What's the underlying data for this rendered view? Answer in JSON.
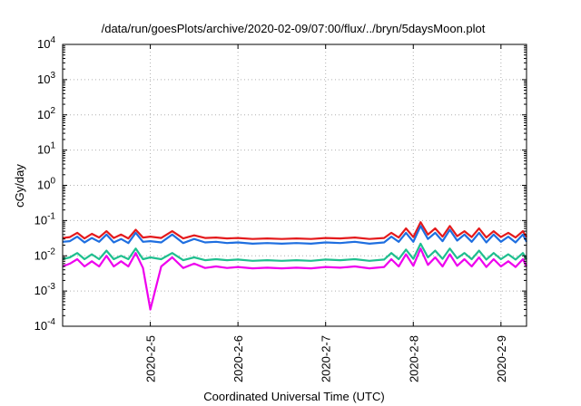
{
  "chart_data": {
    "type": "line",
    "title": "/data/run/goesPlots/archive/2020-02-09/07:00/flux/../bryn/5daysMoon.plot",
    "xlabel": "Coordinated Universal Time (UTC)",
    "ylabel": "cGy/day",
    "yscale": "log",
    "ylim": [
      0.0001,
      10000
    ],
    "xlim": [
      "2020-02-04 00:00",
      "2020-02-09 07:00"
    ],
    "grid": true,
    "y_ticks": [
      {
        "base": "10",
        "exp": "-4",
        "value": 0.0001
      },
      {
        "base": "10",
        "exp": "-3",
        "value": 0.001
      },
      {
        "base": "10",
        "exp": "-2",
        "value": 0.01
      },
      {
        "base": "10",
        "exp": "-1",
        "value": 0.1
      },
      {
        "base": "10",
        "exp": "0",
        "value": 1
      },
      {
        "base": "10",
        "exp": "1",
        "value": 10
      },
      {
        "base": "10",
        "exp": "2",
        "value": 100
      },
      {
        "base": "10",
        "exp": "3",
        "value": 1000
      },
      {
        "base": "10",
        "exp": "4",
        "value": 10000
      }
    ],
    "x_ticks": [
      {
        "label": "2020-2-5",
        "date": "2020-02-05 00:00"
      },
      {
        "label": "2020-2-6",
        "date": "2020-02-06 00:00"
      },
      {
        "label": "2020-2-7",
        "date": "2020-02-07 00:00"
      },
      {
        "label": "2020-2-8",
        "date": "2020-02-08 00:00"
      },
      {
        "label": "2020-2-9",
        "date": "2020-02-09 00:00"
      }
    ],
    "series": [
      {
        "color": "#e41a1c",
        "x": [
          "2020-02-04 00:00",
          "2020-02-04 02:00",
          "2020-02-04 04:00",
          "2020-02-04 06:00",
          "2020-02-04 08:00",
          "2020-02-04 10:00",
          "2020-02-04 12:00",
          "2020-02-04 14:00",
          "2020-02-04 16:00",
          "2020-02-04 18:00",
          "2020-02-04 20:00",
          "2020-02-04 22:00",
          "2020-02-05 00:00",
          "2020-02-05 03:00",
          "2020-02-05 06:00",
          "2020-02-05 09:00",
          "2020-02-05 12:00",
          "2020-02-05 15:00",
          "2020-02-05 18:00",
          "2020-02-05 21:00",
          "2020-02-06 00:00",
          "2020-02-06 04:00",
          "2020-02-06 08:00",
          "2020-02-06 12:00",
          "2020-02-06 16:00",
          "2020-02-06 20:00",
          "2020-02-07 00:00",
          "2020-02-07 04:00",
          "2020-02-07 08:00",
          "2020-02-07 12:00",
          "2020-02-07 16:00",
          "2020-02-07 18:00",
          "2020-02-07 20:00",
          "2020-02-07 22:00",
          "2020-02-08 00:00",
          "2020-02-08 02:00",
          "2020-02-08 04:00",
          "2020-02-08 06:00",
          "2020-02-08 08:00",
          "2020-02-08 10:00",
          "2020-02-08 12:00",
          "2020-02-08 14:00",
          "2020-02-08 16:00",
          "2020-02-08 18:00",
          "2020-02-08 20:00",
          "2020-02-08 22:00",
          "2020-02-09 00:00",
          "2020-02-09 02:00",
          "2020-02-09 04:00",
          "2020-02-09 06:00",
          "2020-02-09 07:00"
        ],
        "y": [
          0.032,
          0.034,
          0.045,
          0.031,
          0.042,
          0.033,
          0.05,
          0.032,
          0.04,
          0.031,
          0.055,
          0.033,
          0.035,
          0.032,
          0.05,
          0.031,
          0.038,
          0.032,
          0.033,
          0.031,
          0.032,
          0.03,
          0.031,
          0.03,
          0.031,
          0.03,
          0.032,
          0.031,
          0.033,
          0.03,
          0.032,
          0.045,
          0.033,
          0.06,
          0.034,
          0.09,
          0.04,
          0.06,
          0.035,
          0.07,
          0.036,
          0.05,
          0.034,
          0.06,
          0.033,
          0.05,
          0.034,
          0.045,
          0.033,
          0.05,
          0.034
        ]
      },
      {
        "color": "#1f6fe0",
        "x": [
          "2020-02-04 00:00",
          "2020-02-04 02:00",
          "2020-02-04 04:00",
          "2020-02-04 06:00",
          "2020-02-04 08:00",
          "2020-02-04 10:00",
          "2020-02-04 12:00",
          "2020-02-04 14:00",
          "2020-02-04 16:00",
          "2020-02-04 18:00",
          "2020-02-04 20:00",
          "2020-02-04 22:00",
          "2020-02-05 00:00",
          "2020-02-05 03:00",
          "2020-02-05 06:00",
          "2020-02-05 09:00",
          "2020-02-05 12:00",
          "2020-02-05 15:00",
          "2020-02-05 18:00",
          "2020-02-05 21:00",
          "2020-02-06 00:00",
          "2020-02-06 04:00",
          "2020-02-06 08:00",
          "2020-02-06 12:00",
          "2020-02-06 16:00",
          "2020-02-06 20:00",
          "2020-02-07 00:00",
          "2020-02-07 04:00",
          "2020-02-07 08:00",
          "2020-02-07 12:00",
          "2020-02-07 16:00",
          "2020-02-07 18:00",
          "2020-02-07 20:00",
          "2020-02-07 22:00",
          "2020-02-08 00:00",
          "2020-02-08 02:00",
          "2020-02-08 04:00",
          "2020-02-08 06:00",
          "2020-02-08 08:00",
          "2020-02-08 10:00",
          "2020-02-08 12:00",
          "2020-02-08 14:00",
          "2020-02-08 16:00",
          "2020-02-08 18:00",
          "2020-02-08 20:00",
          "2020-02-08 22:00",
          "2020-02-09 00:00",
          "2020-02-09 02:00",
          "2020-02-09 04:00",
          "2020-02-09 06:00",
          "2020-02-09 07:00"
        ],
        "y": [
          0.025,
          0.026,
          0.035,
          0.024,
          0.032,
          0.025,
          0.04,
          0.024,
          0.03,
          0.023,
          0.045,
          0.025,
          0.026,
          0.024,
          0.04,
          0.023,
          0.03,
          0.024,
          0.025,
          0.023,
          0.024,
          0.022,
          0.023,
          0.022,
          0.023,
          0.022,
          0.024,
          0.023,
          0.025,
          0.022,
          0.024,
          0.035,
          0.025,
          0.045,
          0.025,
          0.07,
          0.03,
          0.045,
          0.026,
          0.055,
          0.027,
          0.04,
          0.025,
          0.045,
          0.024,
          0.04,
          0.025,
          0.035,
          0.024,
          0.04,
          0.025
        ]
      },
      {
        "color": "#1fbf8f",
        "x": [
          "2020-02-04 00:00",
          "2020-02-04 02:00",
          "2020-02-04 04:00",
          "2020-02-04 06:00",
          "2020-02-04 08:00",
          "2020-02-04 10:00",
          "2020-02-04 12:00",
          "2020-02-04 14:00",
          "2020-02-04 16:00",
          "2020-02-04 18:00",
          "2020-02-04 20:00",
          "2020-02-04 22:00",
          "2020-02-05 00:00",
          "2020-02-05 03:00",
          "2020-02-05 06:00",
          "2020-02-05 09:00",
          "2020-02-05 12:00",
          "2020-02-05 15:00",
          "2020-02-05 18:00",
          "2020-02-05 21:00",
          "2020-02-06 00:00",
          "2020-02-06 04:00",
          "2020-02-06 08:00",
          "2020-02-06 12:00",
          "2020-02-06 16:00",
          "2020-02-06 20:00",
          "2020-02-07 00:00",
          "2020-02-07 04:00",
          "2020-02-07 08:00",
          "2020-02-07 12:00",
          "2020-02-07 16:00",
          "2020-02-07 18:00",
          "2020-02-07 20:00",
          "2020-02-07 22:00",
          "2020-02-08 00:00",
          "2020-02-08 02:00",
          "2020-02-08 04:00",
          "2020-02-08 06:00",
          "2020-02-08 08:00",
          "2020-02-08 10:00",
          "2020-02-08 12:00",
          "2020-02-08 14:00",
          "2020-02-08 16:00",
          "2020-02-08 18:00",
          "2020-02-08 20:00",
          "2020-02-08 22:00",
          "2020-02-09 00:00",
          "2020-02-09 02:00",
          "2020-02-09 04:00",
          "2020-02-09 06:00",
          "2020-02-09 07:00"
        ],
        "y": [
          0.008,
          0.009,
          0.012,
          0.008,
          0.011,
          0.008,
          0.014,
          0.008,
          0.01,
          0.008,
          0.016,
          0.008,
          0.009,
          0.008,
          0.012,
          0.0075,
          0.009,
          0.0075,
          0.008,
          0.0075,
          0.0078,
          0.0072,
          0.0075,
          0.0072,
          0.0075,
          0.0072,
          0.0078,
          0.0075,
          0.008,
          0.0072,
          0.0078,
          0.012,
          0.008,
          0.015,
          0.0082,
          0.022,
          0.009,
          0.014,
          0.0082,
          0.016,
          0.0085,
          0.012,
          0.008,
          0.014,
          0.0078,
          0.012,
          0.008,
          0.011,
          0.0078,
          0.012,
          0.008
        ]
      },
      {
        "color": "#ee00ee",
        "x": [
          "2020-02-04 00:00",
          "2020-02-04 02:00",
          "2020-02-04 04:00",
          "2020-02-04 06:00",
          "2020-02-04 08:00",
          "2020-02-04 10:00",
          "2020-02-04 12:00",
          "2020-02-04 14:00",
          "2020-02-04 16:00",
          "2020-02-04 18:00",
          "2020-02-04 20:00",
          "2020-02-04 22:00",
          "2020-02-05 00:00",
          "2020-02-05 03:00",
          "2020-02-05 06:00",
          "2020-02-05 09:00",
          "2020-02-05 12:00",
          "2020-02-05 15:00",
          "2020-02-05 18:00",
          "2020-02-05 21:00",
          "2020-02-06 00:00",
          "2020-02-06 04:00",
          "2020-02-06 08:00",
          "2020-02-06 12:00",
          "2020-02-06 16:00",
          "2020-02-06 20:00",
          "2020-02-07 00:00",
          "2020-02-07 04:00",
          "2020-02-07 08:00",
          "2020-02-07 12:00",
          "2020-02-07 16:00",
          "2020-02-07 18:00",
          "2020-02-07 20:00",
          "2020-02-07 22:00",
          "2020-02-08 00:00",
          "2020-02-08 02:00",
          "2020-02-08 04:00",
          "2020-02-08 06:00",
          "2020-02-08 08:00",
          "2020-02-08 10:00",
          "2020-02-08 12:00",
          "2020-02-08 14:00",
          "2020-02-08 16:00",
          "2020-02-08 18:00",
          "2020-02-08 20:00",
          "2020-02-08 22:00",
          "2020-02-09 00:00",
          "2020-02-09 02:00",
          "2020-02-09 04:00",
          "2020-02-09 06:00",
          "2020-02-09 07:00"
        ],
        "y": [
          0.005,
          0.006,
          0.008,
          0.005,
          0.007,
          0.005,
          0.01,
          0.005,
          0.007,
          0.005,
          0.012,
          0.0045,
          0.0003,
          0.005,
          0.009,
          0.0045,
          0.006,
          0.0045,
          0.005,
          0.0045,
          0.0048,
          0.0044,
          0.0046,
          0.0044,
          0.0046,
          0.0044,
          0.0048,
          0.0046,
          0.005,
          0.0044,
          0.0048,
          0.008,
          0.005,
          0.011,
          0.0052,
          0.016,
          0.0055,
          0.009,
          0.005,
          0.011,
          0.0052,
          0.008,
          0.005,
          0.009,
          0.0048,
          0.008,
          0.005,
          0.007,
          0.0048,
          0.008,
          0.005
        ]
      }
    ]
  }
}
